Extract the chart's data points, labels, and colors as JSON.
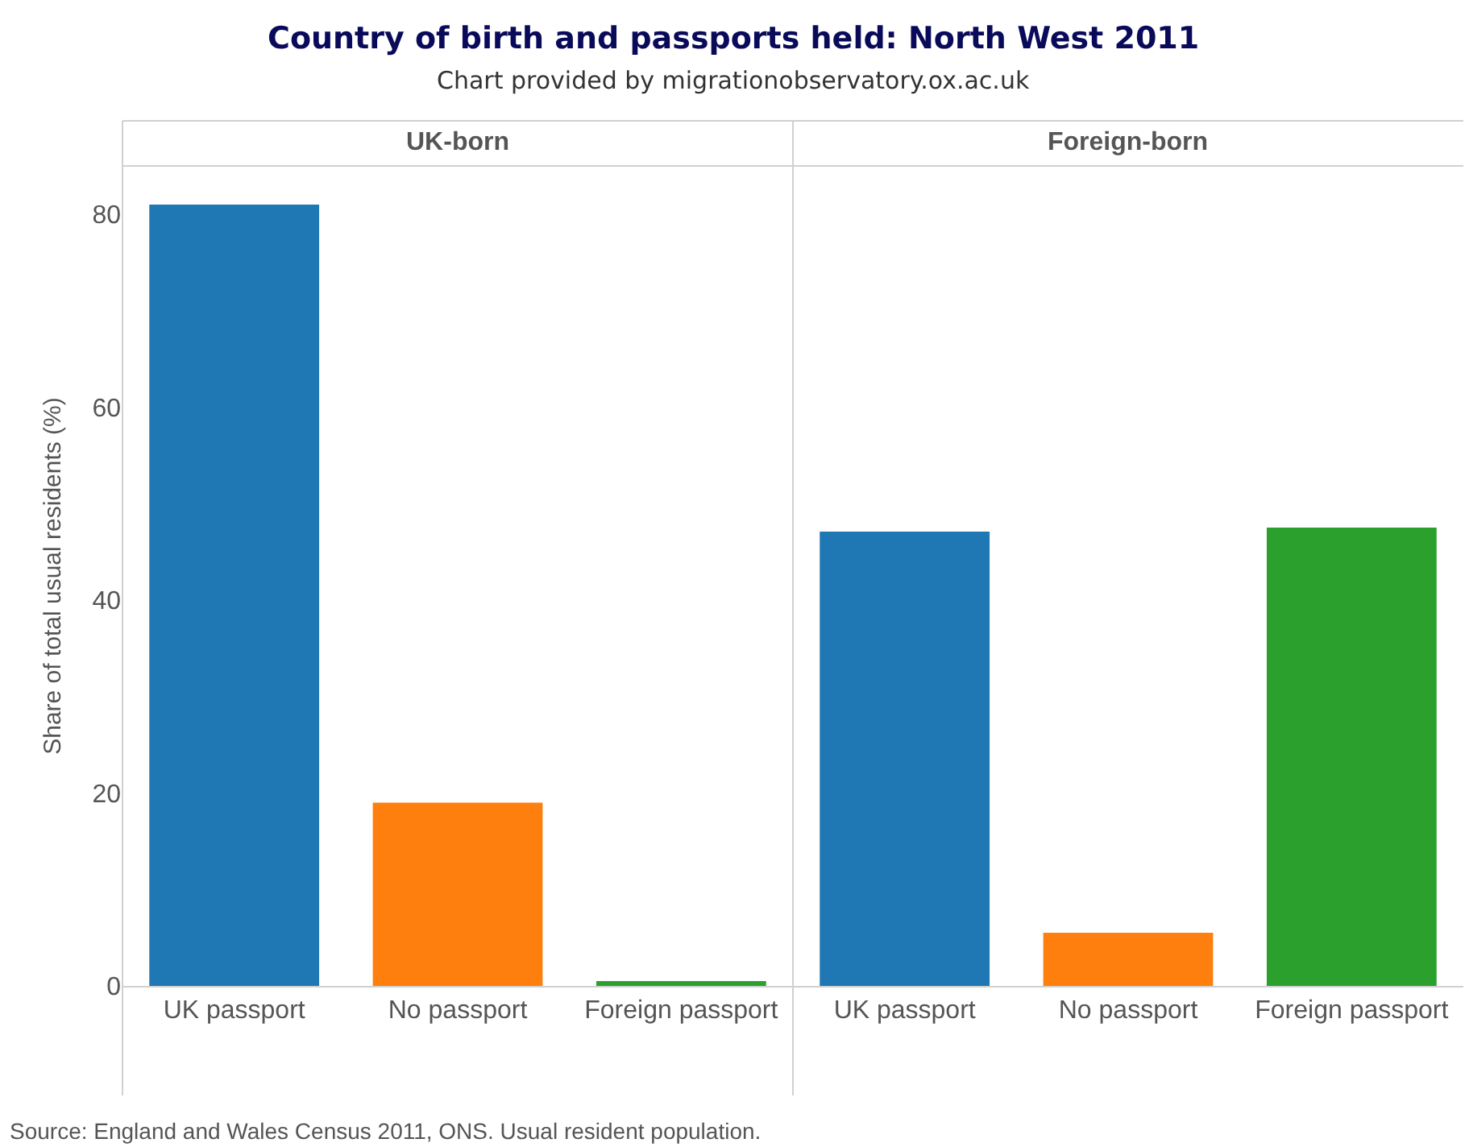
{
  "chart_data": [
    {
      "type": "other",
      "title": "Country of birth and passports held: North West 2011",
      "subtitle": "Chart provided by migrationobservatory.ox.ac.uk",
      "annotations": [
        "Source: England and Wales Census 2011, ONS. Usual resident population."
      ]
    },
    {
      "type": "bar",
      "title": "UK-born",
      "ylabel": "Share of total usual residents (%)",
      "categories": [
        "UK passport",
        "No passport",
        "Foreign passport"
      ],
      "values": [
        81.0,
        19.0,
        0.5
      ],
      "colors": [
        "#1f77b4",
        "#ff7f0e",
        "#2ca02c"
      ],
      "ylim": [
        0,
        85
      ],
      "yticks": [
        0,
        20,
        40,
        60,
        80
      ],
      "legend": false
    },
    {
      "type": "bar",
      "title": "Foreign-born",
      "categories": [
        "UK passport",
        "No passport",
        "Foreign passport"
      ],
      "values": [
        47.1,
        5.5,
        47.5
      ],
      "colors": [
        "#1f77b4",
        "#ff7f0e",
        "#2ca02c"
      ],
      "ylim": [
        0,
        85
      ],
      "yticks": [
        0,
        20,
        40,
        60,
        80
      ],
      "legend": false,
      "tick_labels": "x"
    }
  ]
}
